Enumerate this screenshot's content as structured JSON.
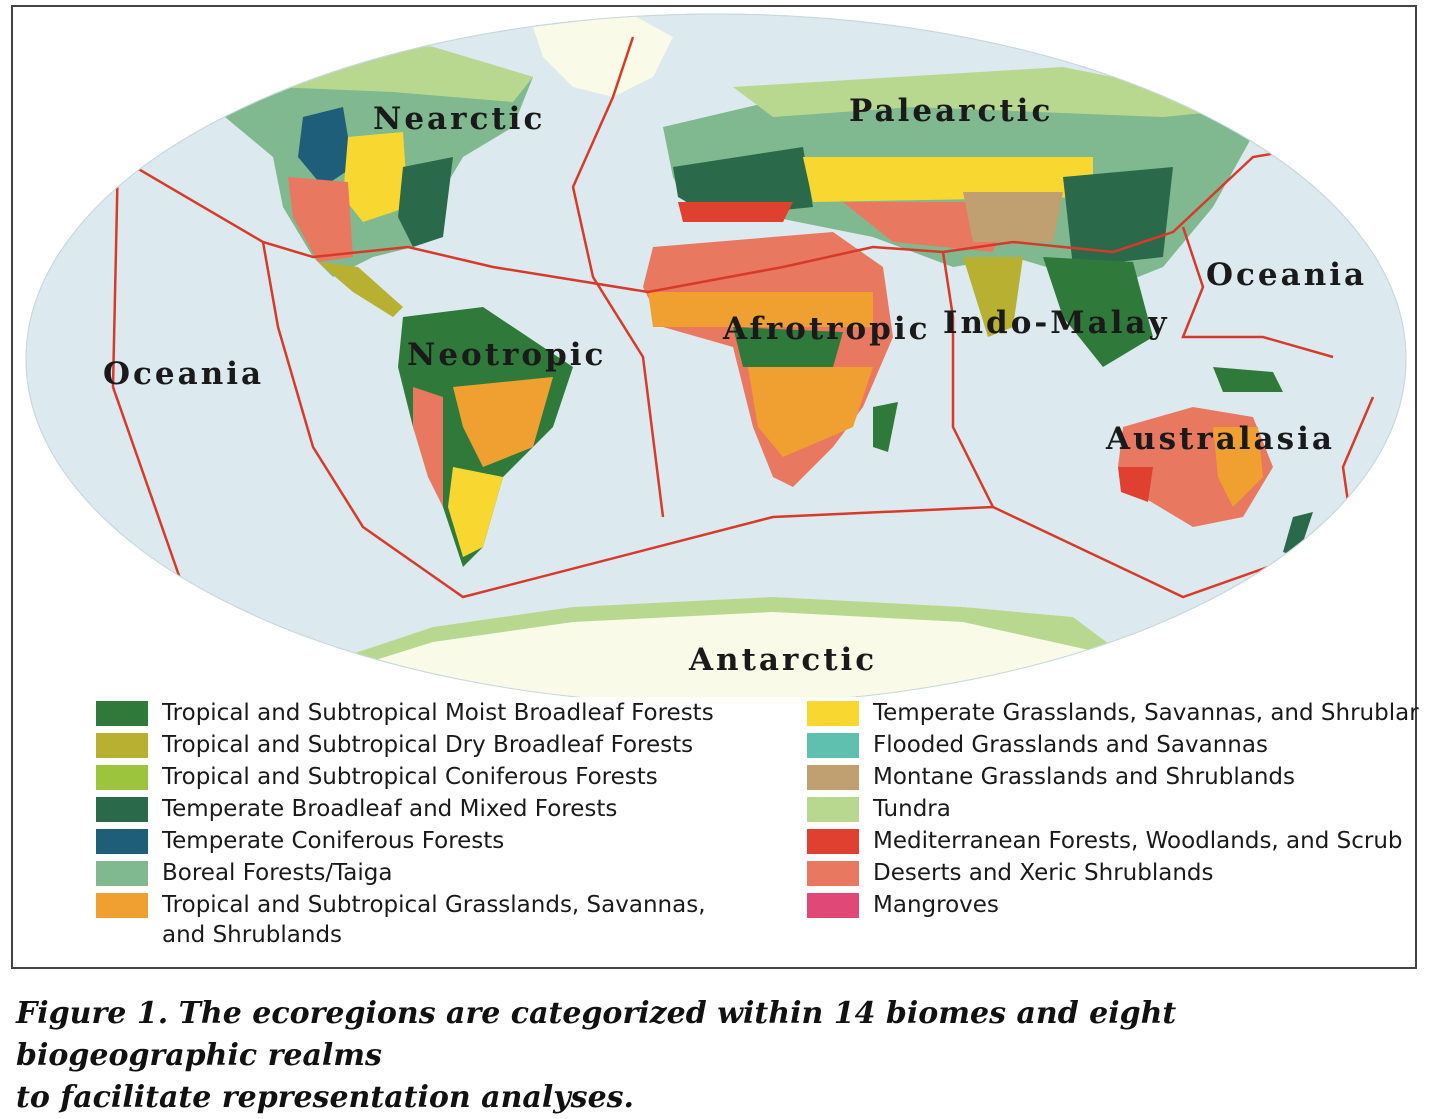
{
  "realms": {
    "nearctic": "Nearctic",
    "palearctic": "Palearctic",
    "oceania_west": "Oceania",
    "oceania_east": "Oceania",
    "neotropic": "Neotropic",
    "afrotropic": "Afrotropic",
    "indo_malay": "Indo-Malay",
    "australasia": "Australasia",
    "antarctic": "Antarctic"
  },
  "legend": {
    "left": [
      {
        "label": "Tropical and Subtropical Moist Broadleaf Forests",
        "color": "#2f7a3a"
      },
      {
        "label": "Tropical and Subtropical Dry Broadleaf Forests",
        "color": "#b8b030"
      },
      {
        "label": "Tropical and Subtropical Coniferous Forests",
        "color": "#9cc43c"
      },
      {
        "label": "Temperate Broadleaf and Mixed Forests",
        "color": "#2a6a4a"
      },
      {
        "label": "Temperate Coniferous Forests",
        "color": "#1e5e78"
      },
      {
        "label": "Boreal Forests/Taiga",
        "color": "#80b890"
      },
      {
        "label": "Tropical and Subtropical Grasslands, Savannas,",
        "label2": "and Shrublands",
        "color": "#f0a030"
      }
    ],
    "right": [
      {
        "label": "Temperate Grasslands, Savannas, and Shrublar",
        "color": "#f8d830"
      },
      {
        "label": "Flooded Grasslands and Savannas",
        "color": "#60c0b0"
      },
      {
        "label": "Montane Grasslands and Shrublands",
        "color": "#c0a070"
      },
      {
        "label": "Tundra",
        "color": "#b8d890"
      },
      {
        "label": "Mediterranean Forests, Woodlands, and Scrub",
        "color": "#e04030"
      },
      {
        "label": "Deserts and Xeric Shrublands",
        "color": "#e87860"
      },
      {
        "label": "Mangroves",
        "color": "#e04878"
      }
    ]
  },
  "caption": {
    "line1": "Figure 1. The ecoregions are categorized within 14 biomes and eight biogeographic realms",
    "line2": "to facilitate representation analyses."
  },
  "colors": {
    "ocean": "#dce9ee",
    "boundary": "#d83a2a",
    "ice": "#fafae8"
  }
}
